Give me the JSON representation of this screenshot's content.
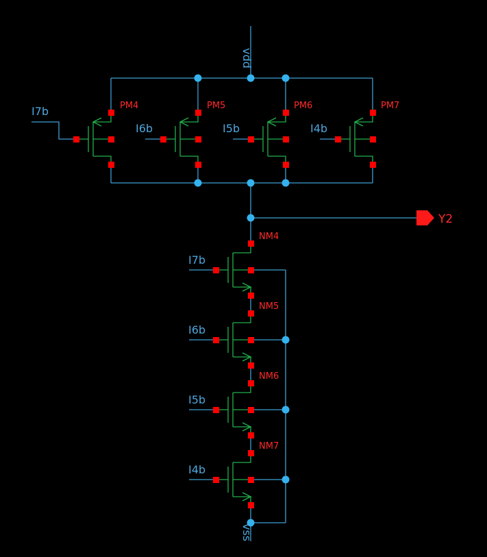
{
  "schematic": {
    "supply": {
      "vdd": "vdd",
      "vss": "vss"
    },
    "output": {
      "pin": "Y2"
    },
    "pmos": [
      {
        "instance": "PM4",
        "gate": "I7b"
      },
      {
        "instance": "PM5",
        "gate": "I6b"
      },
      {
        "instance": "PM6",
        "gate": "I5b"
      },
      {
        "instance": "PM7",
        "gate": "I4b"
      }
    ],
    "nmos": [
      {
        "instance": "NM4",
        "gate": "I7b"
      },
      {
        "instance": "NM5",
        "gate": "I6b"
      },
      {
        "instance": "NM6",
        "gate": "I5b"
      },
      {
        "instance": "NM7",
        "gate": "I4b"
      }
    ]
  },
  "colors": {
    "background": "#000000",
    "wire": "#3f9fd3",
    "device": "#22b14c",
    "pin": "#ff0000",
    "junction": "#35b2ee",
    "label": "#ff2a2a"
  }
}
